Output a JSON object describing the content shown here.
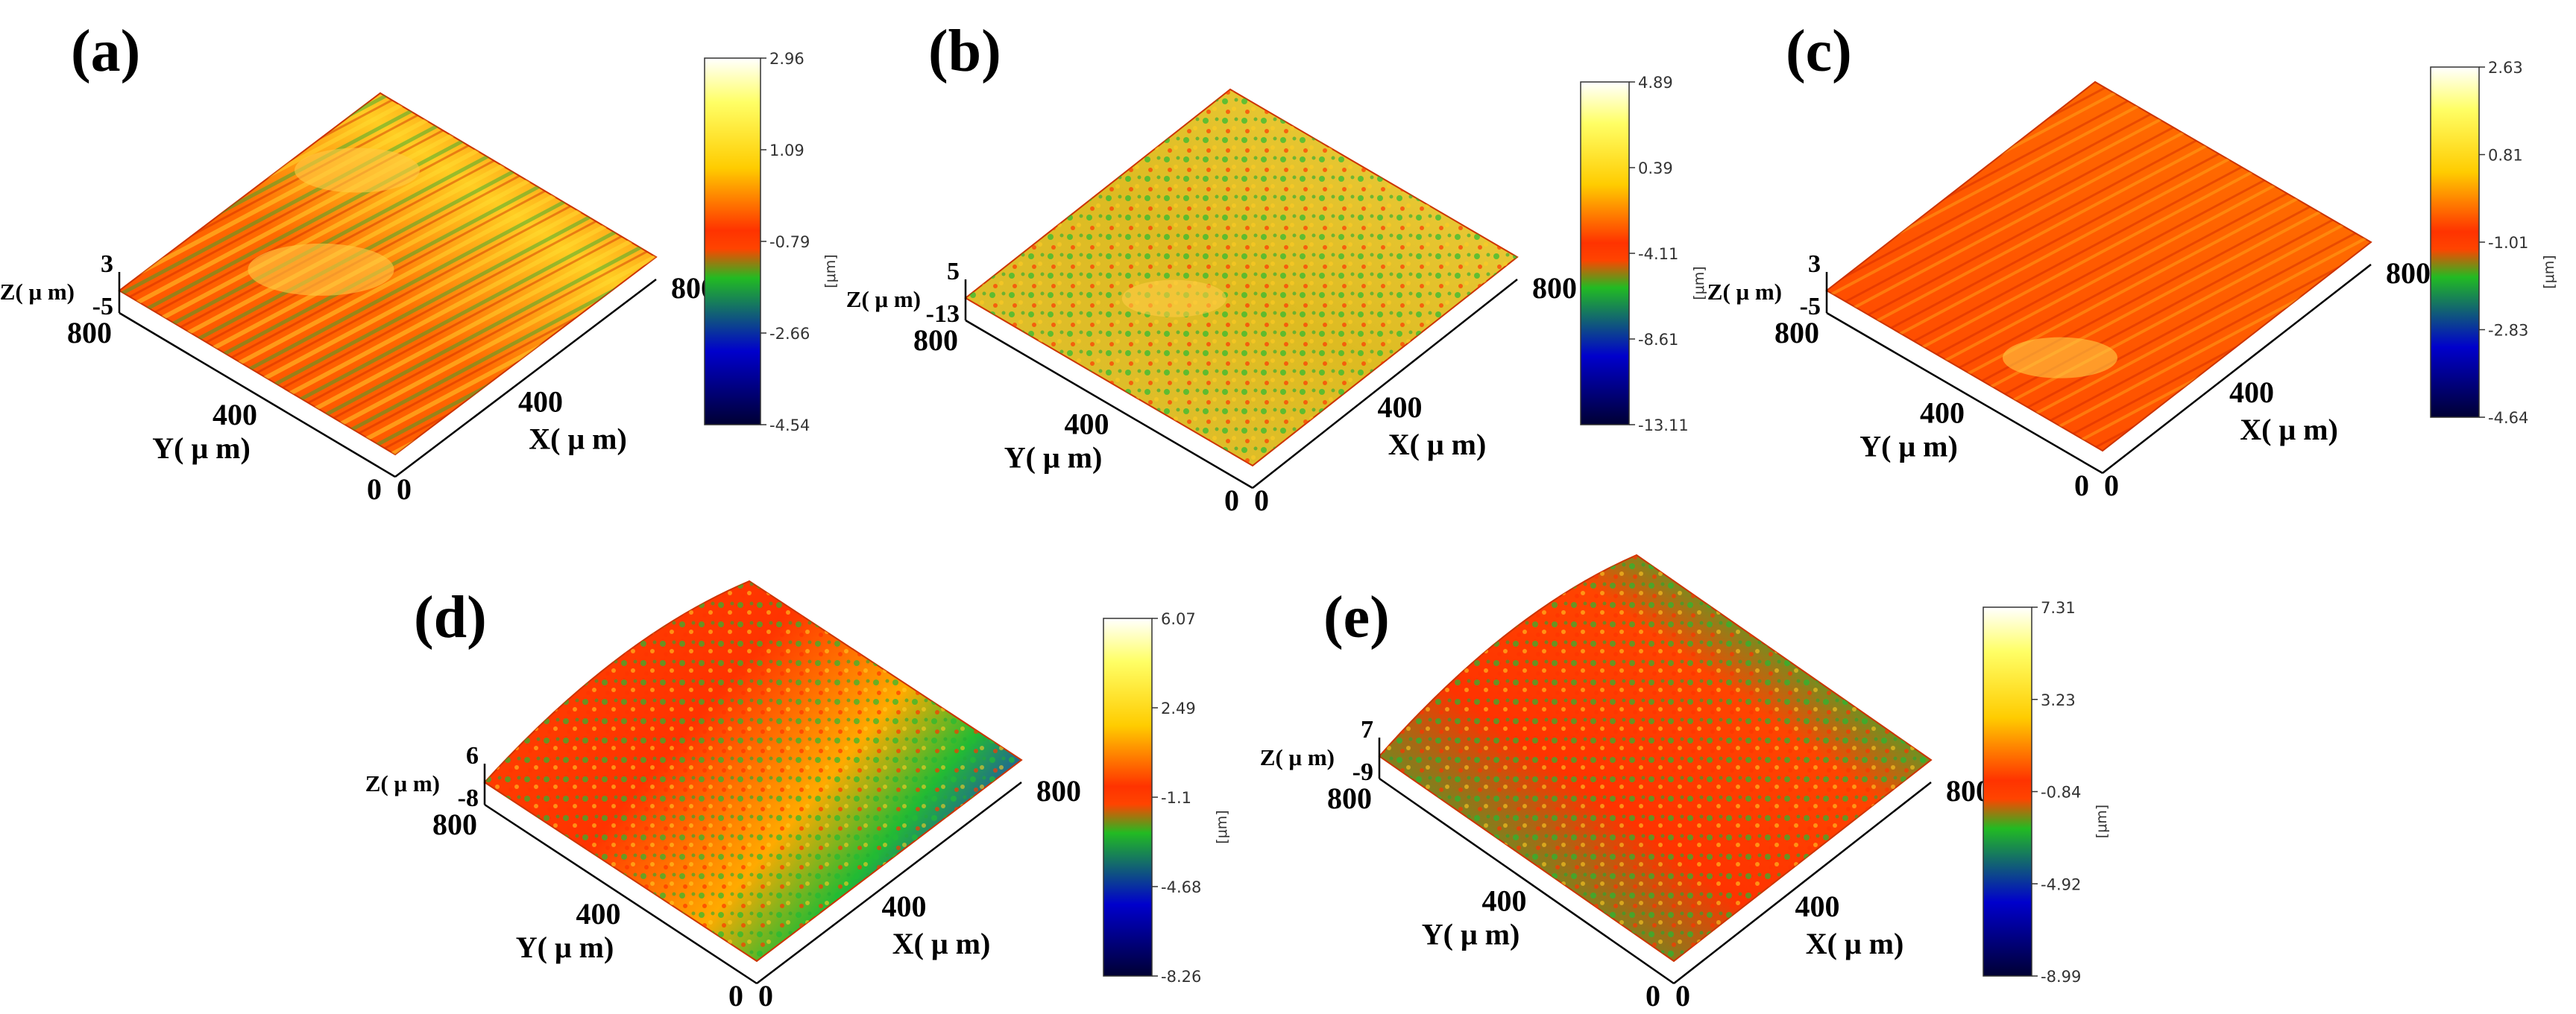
{
  "figure": "3D surface topography of five samples",
  "colors": {
    "colormap": [
      "#000033",
      "#0000cc",
      "#00cc33",
      "#22bb22",
      "#ff5500",
      "#ff3300",
      "#ffcc00",
      "#ffff66",
      "#ffffff"
    ]
  },
  "chart_data": [
    {
      "panel": "(a)",
      "type": "surface3d",
      "x_axis": {
        "label": "X( μ m)",
        "ticks": [
          "0",
          "400",
          "800"
        ]
      },
      "y_axis": {
        "label": "Y( μ m)",
        "ticks": [
          "0",
          "400",
          "800"
        ]
      },
      "z_axis": {
        "label": "Z( μ m)",
        "max": "3",
        "min": "-5"
      },
      "colorbar": {
        "unit": "[μm]",
        "ticks": [
          "2.96",
          "1.09",
          "-0.79",
          "-2.66",
          "-4.54"
        ]
      },
      "surface": {
        "style": "ridged",
        "palette": [
          "#ff4400",
          "#ffcc11",
          "#22bb33"
        ]
      }
    },
    {
      "panel": "(b)",
      "type": "surface3d",
      "x_axis": {
        "label": "X( μ m)",
        "ticks": [
          "0",
          "400",
          "800"
        ]
      },
      "y_axis": {
        "label": "Y( μ m)",
        "ticks": [
          "0",
          "400",
          "800"
        ]
      },
      "z_axis": {
        "label": "Z( μ m)",
        "max": "5",
        "min": "-13"
      },
      "colorbar": {
        "unit": "[μm]",
        "ticks": [
          "4.89",
          "0.39",
          "-4.11",
          "-8.61",
          "-13.11"
        ]
      },
      "surface": {
        "style": "rough-band",
        "palette": [
          "#ddbb22",
          "#ff4400",
          "#22bb33"
        ]
      }
    },
    {
      "panel": "(c)",
      "type": "surface3d",
      "x_axis": {
        "label": "X( μ m)",
        "ticks": [
          "0",
          "400",
          "800"
        ]
      },
      "y_axis": {
        "label": "Y( μ m)",
        "ticks": [
          "0",
          "400",
          "800"
        ]
      },
      "z_axis": {
        "label": "Z( μ m)",
        "max": "3",
        "min": "-5"
      },
      "colorbar": {
        "unit": "[μm]",
        "ticks": [
          "2.63",
          "0.81",
          "-1.01",
          "-2.83",
          "-4.64"
        ]
      },
      "surface": {
        "style": "ridged",
        "palette": [
          "#ff5500",
          "#ffbb11",
          "#22bb33"
        ]
      }
    },
    {
      "panel": "(d)",
      "type": "surface3d",
      "x_axis": {
        "label": "X( μ m)",
        "ticks": [
          "0",
          "400",
          "800"
        ]
      },
      "y_axis": {
        "label": "Y( μ m)",
        "ticks": [
          "0",
          "400",
          "800"
        ]
      },
      "z_axis": {
        "label": "Z( μ m)",
        "max": "6",
        "min": "-8"
      },
      "colorbar": {
        "unit": "[μm]",
        "ticks": [
          "6.07",
          "2.49",
          "-1.1",
          "-4.68",
          "-8.26"
        ]
      },
      "surface": {
        "style": "curved",
        "palette": [
          "#ff3300",
          "#22bb33",
          "#2233cc"
        ]
      }
    },
    {
      "panel": "(e)",
      "type": "surface3d",
      "x_axis": {
        "label": "X( μ m)",
        "ticks": [
          "0",
          "400",
          "800"
        ]
      },
      "y_axis": {
        "label": "Y( μ m)",
        "ticks": [
          "0",
          "400",
          "800"
        ]
      },
      "z_axis": {
        "label": "Z( μ m)",
        "max": "7",
        "min": "-9"
      },
      "colorbar": {
        "unit": "[μm]",
        "ticks": [
          "7.31",
          "3.23",
          "-0.84",
          "-4.92",
          "-8.99"
        ]
      },
      "surface": {
        "style": "tilted",
        "palette": [
          "#ff3300",
          "#22bb33",
          "#2233cc"
        ]
      }
    }
  ]
}
